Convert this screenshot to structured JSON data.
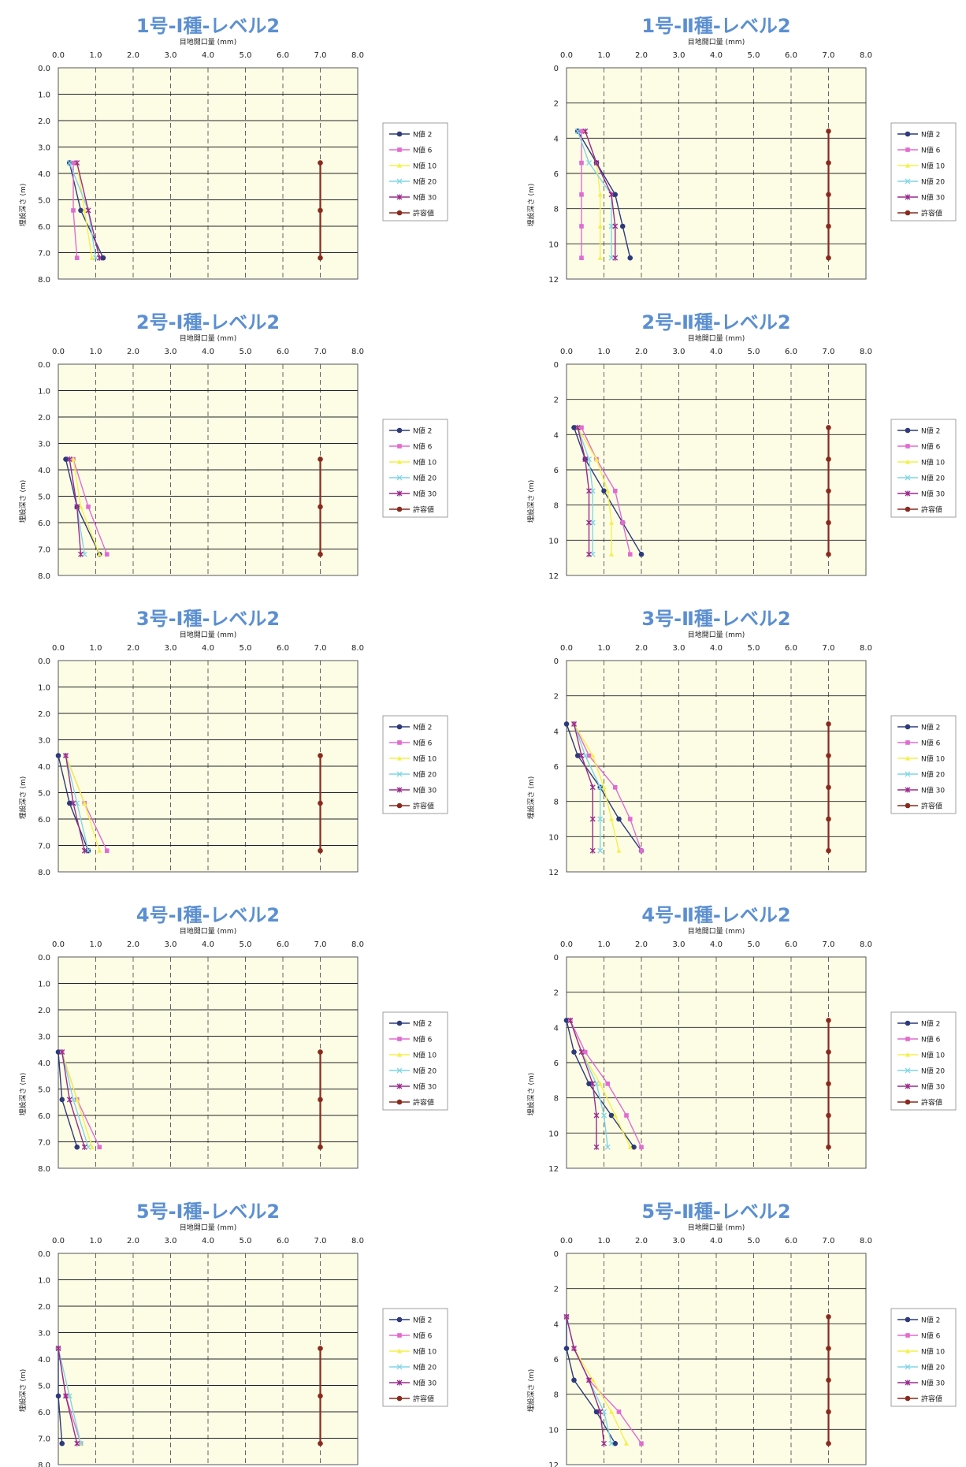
{
  "colors": {
    "title": "#5b8fd1",
    "plot_bg": "#fdfde6",
    "N値 2": "#2d3a7c",
    "N値 6": "#e26bd0",
    "N値 10": "#f4f04a",
    "N値 20": "#7fd6e6",
    "N値 30": "#9a2a8c",
    "許容値": "#8a2a1e"
  },
  "chart_data": [
    {
      "type": "line",
      "title": "1号-Ⅰ種-レベル2",
      "xlabel": "目地開口量 (mm)",
      "ylabel": "埋設深さ (m)",
      "xlim": [
        0,
        8
      ],
      "x_ticks": [
        "0.0",
        "1.0",
        "2.0",
        "3.0",
        "4.0",
        "5.0",
        "6.0",
        "7.0",
        "8.0"
      ],
      "ylim": [
        0,
        8
      ],
      "y_ticks": [
        "0.0",
        "1.0",
        "2.0",
        "3.0",
        "4.0",
        "5.0",
        "6.0",
        "7.0",
        "8.0"
      ],
      "legend": "right",
      "depths": [
        3.6,
        5.4,
        7.2
      ],
      "series": [
        {
          "name": "N値 2",
          "values": [
            0.3,
            0.6,
            1.2
          ]
        },
        {
          "name": "N値 6",
          "values": [
            0.4,
            0.4,
            0.5
          ]
        },
        {
          "name": "N値 10",
          "values": [
            0.5,
            0.7,
            0.9
          ]
        },
        {
          "name": "N値 20",
          "values": [
            0.3,
            0.8,
            1.0
          ]
        },
        {
          "name": "N値 30",
          "values": [
            0.5,
            0.8,
            1.1
          ]
        },
        {
          "name": "許容値",
          "values": [
            7.0,
            7.0,
            7.0
          ]
        }
      ]
    },
    {
      "type": "line",
      "title": "1号-Ⅱ種-レベル2",
      "xlabel": "目地開口量 (mm)",
      "ylabel": "埋設深さ (m)",
      "xlim": [
        0,
        8
      ],
      "x_ticks": [
        "0.0",
        "1.0",
        "2.0",
        "3.0",
        "4.0",
        "5.0",
        "6.0",
        "7.0",
        "8.0"
      ],
      "ylim": [
        0,
        12
      ],
      "y_ticks": [
        "0",
        "2",
        "4",
        "6",
        "8",
        "10",
        "12"
      ],
      "legend": "right",
      "depths": [
        3.6,
        5.4,
        7.2,
        9.0,
        10.8
      ],
      "series": [
        {
          "name": "N値 2",
          "values": [
            0.3,
            0.8,
            1.3,
            1.5,
            1.7
          ]
        },
        {
          "name": "N値 6",
          "values": [
            0.4,
            0.4,
            0.4,
            0.4,
            0.4
          ]
        },
        {
          "name": "N値 10",
          "values": [
            0.5,
            0.8,
            0.9,
            0.9,
            0.9
          ]
        },
        {
          "name": "N値 20",
          "values": [
            0.3,
            0.6,
            1.2,
            1.2,
            1.2
          ]
        },
        {
          "name": "N値 30",
          "values": [
            0.5,
            0.8,
            1.2,
            1.3,
            1.3
          ]
        },
        {
          "name": "許容値",
          "values": [
            7.0,
            7.0,
            7.0,
            7.0,
            7.0
          ]
        }
      ]
    },
    {
      "type": "line",
      "title": "2号-Ⅰ種-レベル2",
      "xlabel": "目地開口量 (mm)",
      "ylabel": "埋設深さ (m)",
      "xlim": [
        0,
        8
      ],
      "x_ticks": [
        "0.0",
        "1.0",
        "2.0",
        "3.0",
        "4.0",
        "5.0",
        "6.0",
        "7.0",
        "8.0"
      ],
      "ylim": [
        0,
        8
      ],
      "y_ticks": [
        "0.0",
        "1.0",
        "2.0",
        "3.0",
        "4.0",
        "5.0",
        "6.0",
        "7.0",
        "8.0"
      ],
      "legend": "right",
      "depths": [
        3.6,
        5.4,
        7.2
      ],
      "series": [
        {
          "name": "N値 2",
          "values": [
            0.2,
            0.5,
            1.1
          ]
        },
        {
          "name": "N値 6",
          "values": [
            0.4,
            0.8,
            1.3
          ]
        },
        {
          "name": "N値 10",
          "values": [
            0.4,
            0.6,
            1.1
          ]
        },
        {
          "name": "N値 20",
          "values": [
            0.3,
            0.5,
            0.7
          ]
        },
        {
          "name": "N値 30",
          "values": [
            0.3,
            0.5,
            0.6
          ]
        },
        {
          "name": "許容値",
          "values": [
            7.0,
            7.0,
            7.0
          ]
        }
      ]
    },
    {
      "type": "line",
      "title": "2号-Ⅱ種-レベル2",
      "xlabel": "目地開口量 (mm)",
      "ylabel": "埋設深さ (m)",
      "xlim": [
        0,
        8
      ],
      "x_ticks": [
        "0.0",
        "1.0",
        "2.0",
        "3.0",
        "4.0",
        "5.0",
        "6.0",
        "7.0",
        "8.0"
      ],
      "ylim": [
        0,
        12
      ],
      "y_ticks": [
        "0",
        "2",
        "4",
        "6",
        "8",
        "10",
        "12"
      ],
      "legend": "right",
      "depths": [
        3.6,
        5.4,
        7.2,
        9.0,
        10.8
      ],
      "series": [
        {
          "name": "N値 2",
          "values": [
            0.2,
            0.5,
            1.0,
            1.5,
            2.0
          ]
        },
        {
          "name": "N値 6",
          "values": [
            0.4,
            0.8,
            1.3,
            1.5,
            1.7
          ]
        },
        {
          "name": "N値 10",
          "values": [
            0.3,
            0.8,
            1.1,
            1.2,
            1.2
          ]
        },
        {
          "name": "N値 20",
          "values": [
            0.3,
            0.6,
            0.7,
            0.7,
            0.7
          ]
        },
        {
          "name": "N値 30",
          "values": [
            0.3,
            0.5,
            0.6,
            0.6,
            0.6
          ]
        },
        {
          "name": "許容値",
          "values": [
            7.0,
            7.0,
            7.0,
            7.0,
            7.0
          ]
        }
      ]
    },
    {
      "type": "line",
      "title": "3号-Ⅰ種-レベル2",
      "xlabel": "目地開口量 (mm)",
      "ylabel": "埋設深さ (m)",
      "xlim": [
        0,
        8
      ],
      "x_ticks": [
        "0.0",
        "1.0",
        "2.0",
        "3.0",
        "4.0",
        "5.0",
        "6.0",
        "7.0",
        "8.0"
      ],
      "ylim": [
        0,
        8
      ],
      "y_ticks": [
        "0.0",
        "1.0",
        "2.0",
        "3.0",
        "4.0",
        "5.0",
        "6.0",
        "7.0",
        "8.0"
      ],
      "legend": "right",
      "depths": [
        3.6,
        5.4,
        7.2
      ],
      "series": [
        {
          "name": "N値 2",
          "values": [
            0.0,
            0.3,
            0.8
          ]
        },
        {
          "name": "N値 6",
          "values": [
            0.2,
            0.7,
            1.3
          ]
        },
        {
          "name": "N値 10",
          "values": [
            0.2,
            0.7,
            1.1
          ]
        },
        {
          "name": "N値 20",
          "values": [
            0.2,
            0.5,
            0.8
          ]
        },
        {
          "name": "N値 30",
          "values": [
            0.2,
            0.4,
            0.7
          ]
        },
        {
          "name": "許容値",
          "values": [
            7.0,
            7.0,
            7.0
          ]
        }
      ]
    },
    {
      "type": "line",
      "title": "3号-Ⅱ種-レベル2",
      "xlabel": "目地開口量 (mm)",
      "ylabel": "埋設深さ (m)",
      "xlim": [
        0,
        8
      ],
      "x_ticks": [
        "0.0",
        "1.0",
        "2.0",
        "3.0",
        "4.0",
        "5.0",
        "6.0",
        "7.0",
        "8.0"
      ],
      "ylim": [
        0,
        12
      ],
      "y_ticks": [
        "0",
        "2",
        "4",
        "6",
        "8",
        "10",
        "12"
      ],
      "legend": "right",
      "depths": [
        3.6,
        5.4,
        7.2,
        9.0,
        10.8
      ],
      "series": [
        {
          "name": "N値 2",
          "values": [
            0.0,
            0.3,
            0.9,
            1.4,
            2.0
          ]
        },
        {
          "name": "N値 6",
          "values": [
            0.2,
            0.6,
            1.3,
            1.7,
            2.0
          ]
        },
        {
          "name": "N値 10",
          "values": [
            0.2,
            0.7,
            1.0,
            1.2,
            1.4
          ]
        },
        {
          "name": "N値 20",
          "values": [
            0.2,
            0.5,
            0.9,
            0.9,
            0.9
          ]
        },
        {
          "name": "N値 30",
          "values": [
            0.2,
            0.4,
            0.7,
            0.7,
            0.7
          ]
        },
        {
          "name": "許容値",
          "values": [
            7.0,
            7.0,
            7.0,
            7.0,
            7.0
          ]
        }
      ]
    },
    {
      "type": "line",
      "title": "4号-Ⅰ種-レベル2",
      "xlabel": "目地開口量 (mm)",
      "ylabel": "埋設深さ (m)",
      "xlim": [
        0,
        8
      ],
      "x_ticks": [
        "0.0",
        "1.0",
        "2.0",
        "3.0",
        "4.0",
        "5.0",
        "6.0",
        "7.0",
        "8.0"
      ],
      "ylim": [
        0,
        8
      ],
      "y_ticks": [
        "0.0",
        "1.0",
        "2.0",
        "3.0",
        "4.0",
        "5.0",
        "6.0",
        "7.0",
        "8.0"
      ],
      "legend": "right",
      "depths": [
        3.6,
        5.4,
        7.2
      ],
      "series": [
        {
          "name": "N値 2",
          "values": [
            0.0,
            0.1,
            0.5
          ]
        },
        {
          "name": "N値 6",
          "values": [
            0.1,
            0.5,
            1.1
          ]
        },
        {
          "name": "N値 10",
          "values": [
            0.1,
            0.5,
            0.9
          ]
        },
        {
          "name": "N値 20",
          "values": [
            0.1,
            0.4,
            0.8
          ]
        },
        {
          "name": "N値 30",
          "values": [
            0.1,
            0.3,
            0.7
          ]
        },
        {
          "name": "許容値",
          "values": [
            7.0,
            7.0,
            7.0
          ]
        }
      ]
    },
    {
      "type": "line",
      "title": "4号-Ⅱ種-レベル2",
      "xlabel": "目地開口量 (mm)",
      "ylabel": "埋設深さ (m)",
      "xlim": [
        0,
        8
      ],
      "x_ticks": [
        "0.0",
        "1.0",
        "2.0",
        "3.0",
        "4.0",
        "5.0",
        "6.0",
        "7.0",
        "8.0"
      ],
      "ylim": [
        0,
        12
      ],
      "y_ticks": [
        "0",
        "2",
        "4",
        "6",
        "8",
        "10",
        "12"
      ],
      "legend": "right",
      "depths": [
        3.6,
        5.4,
        7.2,
        9.0,
        10.8
      ],
      "series": [
        {
          "name": "N値 2",
          "values": [
            0.0,
            0.2,
            0.6,
            1.2,
            1.8
          ]
        },
        {
          "name": "N値 6",
          "values": [
            0.1,
            0.5,
            1.1,
            1.6,
            2.0
          ]
        },
        {
          "name": "N値 10",
          "values": [
            0.1,
            0.4,
            0.9,
            1.3,
            1.7
          ]
        },
        {
          "name": "N値 20",
          "values": [
            0.1,
            0.4,
            0.8,
            1.0,
            1.1
          ]
        },
        {
          "name": "N値 30",
          "values": [
            0.1,
            0.4,
            0.7,
            0.8,
            0.8
          ]
        },
        {
          "name": "許容値",
          "values": [
            7.0,
            7.0,
            7.0,
            7.0,
            7.0
          ]
        }
      ]
    },
    {
      "type": "line",
      "title": "5号-Ⅰ種-レベル2",
      "xlabel": "目地開口量 (mm)",
      "ylabel": "埋設深さ (m)",
      "xlim": [
        0,
        8
      ],
      "x_ticks": [
        "0.0",
        "1.0",
        "2.0",
        "3.0",
        "4.0",
        "5.0",
        "6.0",
        "7.0",
        "8.0"
      ],
      "ylim": [
        0,
        8
      ],
      "y_ticks": [
        "0.0",
        "1.0",
        "2.0",
        "3.0",
        "4.0",
        "5.0",
        "6.0",
        "7.0",
        "8.0"
      ],
      "legend": "right",
      "depths": [
        3.6,
        5.4,
        7.2
      ],
      "series": [
        {
          "name": "N値 2",
          "values": [
            0.0,
            0.0,
            0.1
          ]
        },
        {
          "name": "N値 6",
          "values": [
            0.0,
            0.2,
            0.6
          ]
        },
        {
          "name": "N値 10",
          "values": [
            0.0,
            0.3,
            0.6
          ]
        },
        {
          "name": "N値 20",
          "values": [
            0.0,
            0.3,
            0.6
          ]
        },
        {
          "name": "N値 30",
          "values": [
            0.0,
            0.2,
            0.5
          ]
        },
        {
          "name": "許容値",
          "values": [
            7.0,
            7.0,
            7.0
          ]
        }
      ]
    },
    {
      "type": "line",
      "title": "5号-Ⅱ種-レベル2",
      "xlabel": "目地開口量 (mm)",
      "ylabel": "埋設深さ (m)",
      "xlim": [
        0,
        8
      ],
      "x_ticks": [
        "0.0",
        "1.0",
        "2.0",
        "3.0",
        "4.0",
        "5.0",
        "6.0",
        "7.0",
        "8.0"
      ],
      "ylim": [
        0,
        12
      ],
      "y_ticks": [
        "0",
        "2",
        "4",
        "6",
        "8",
        "10",
        "12"
      ],
      "legend": "right",
      "depths": [
        3.6,
        5.4,
        7.2,
        9.0,
        10.8
      ],
      "series": [
        {
          "name": "N値 2",
          "values": [
            0.0,
            0.0,
            0.2,
            0.8,
            1.3
          ]
        },
        {
          "name": "N値 6",
          "values": [
            0.0,
            0.2,
            0.6,
            1.4,
            2.0
          ]
        },
        {
          "name": "N値 10",
          "values": [
            0.0,
            0.2,
            0.7,
            1.2,
            1.6
          ]
        },
        {
          "name": "N値 20",
          "values": [
            0.0,
            0.2,
            0.6,
            1.0,
            1.2
          ]
        },
        {
          "name": "N値 30",
          "values": [
            0.0,
            0.2,
            0.6,
            0.9,
            1.0
          ]
        },
        {
          "name": "許容値",
          "values": [
            7.0,
            7.0,
            7.0,
            7.0,
            7.0
          ]
        }
      ]
    }
  ]
}
